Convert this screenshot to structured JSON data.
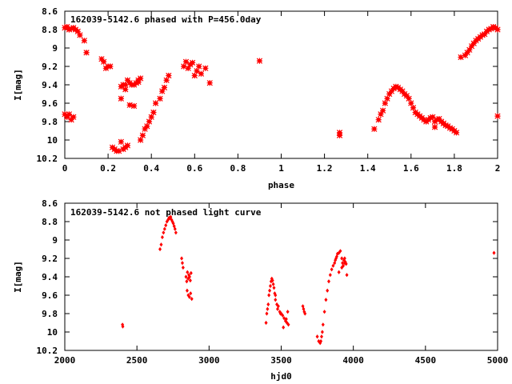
{
  "chart_data": [
    {
      "type": "scatter",
      "title": "162039-5142.6 phased with P=456.0day",
      "xlabel": "phase",
      "ylabel": "I[mag]",
      "xlim": [
        0,
        2
      ],
      "ylim": [
        10.2,
        8.6
      ],
      "y_inverted": true,
      "grid": false,
      "marker_color": "#ff0000",
      "marker": "filled-circle-cross",
      "xticks": [
        "0",
        "0.2",
        "0.4",
        "0.6",
        "0.8",
        "1",
        "1.2",
        "1.4",
        "1.6",
        "1.8",
        "2"
      ],
      "yticks": [
        "8.6",
        "8.8",
        "9",
        "9.2",
        "9.4",
        "9.6",
        "9.8",
        "10",
        "10.2"
      ],
      "series": [
        {
          "x": [
            0.0,
            0.01,
            0.02,
            0.03,
            0.04,
            0.05,
            0.06,
            0.07,
            0.09,
            0.1,
            0.0,
            0.01,
            0.02,
            0.03,
            0.04,
            0.17,
            0.18,
            0.19,
            0.2,
            0.21,
            0.22,
            0.23,
            0.24,
            0.25,
            0.26,
            0.27,
            0.28,
            0.29,
            0.26,
            0.27,
            0.28,
            0.29,
            0.3,
            0.31,
            0.32,
            0.33,
            0.34,
            0.35,
            0.26,
            0.28,
            0.3,
            0.32,
            0.34,
            0.35,
            0.36,
            0.37,
            0.38,
            0.39,
            0.4,
            0.41,
            0.42,
            0.44,
            0.45,
            0.46,
            0.47,
            0.48,
            0.55,
            0.56,
            0.57,
            0.58,
            0.59,
            0.6,
            0.61,
            0.62,
            0.63,
            0.65,
            0.67,
            0.9,
            1.27,
            1.27,
            1.43,
            1.45,
            1.46,
            1.47,
            1.48,
            1.49,
            1.5,
            1.51,
            1.52,
            1.53,
            1.54,
            1.55,
            1.56,
            1.57,
            1.58,
            1.59,
            1.6,
            1.61,
            1.62,
            1.63,
            1.64,
            1.65,
            1.66,
            1.67,
            1.68,
            1.69,
            1.7,
            1.71,
            1.72,
            1.73,
            1.74,
            1.75,
            1.76,
            1.77,
            1.78,
            1.79,
            1.8,
            1.81,
            1.71,
            1.75,
            1.83,
            1.85,
            1.86,
            1.87,
            1.88,
            1.89,
            1.9,
            1.91,
            1.92,
            1.93,
            1.94,
            1.95,
            1.96,
            1.97,
            1.98,
            1.99,
            2.0,
            2.0
          ],
          "y": [
            8.78,
            8.77,
            8.8,
            8.79,
            8.78,
            8.8,
            8.82,
            8.86,
            8.92,
            9.05,
            9.72,
            9.75,
            9.72,
            9.78,
            9.75,
            9.12,
            9.15,
            9.22,
            9.2,
            9.2,
            10.08,
            10.1,
            10.12,
            10.12,
            10.02,
            10.1,
            10.08,
            10.06,
            9.55,
            9.4,
            9.45,
            9.35,
            9.62,
            9.4,
            9.63,
            9.38,
            9.35,
            9.33,
            9.42,
            9.4,
            9.38,
            9.4,
            9.37,
            10.0,
            9.95,
            9.88,
            9.85,
            9.8,
            9.75,
            9.7,
            9.6,
            9.55,
            9.47,
            9.43,
            9.35,
            9.3,
            9.2,
            9.15,
            9.22,
            9.18,
            9.16,
            9.3,
            9.25,
            9.2,
            9.28,
            9.22,
            9.38,
            9.14,
            9.92,
            9.95,
            9.88,
            9.78,
            9.72,
            9.68,
            9.6,
            9.55,
            9.5,
            9.47,
            9.44,
            9.42,
            9.43,
            9.45,
            9.47,
            9.5,
            9.52,
            9.55,
            9.6,
            9.65,
            9.7,
            9.72,
            9.74,
            9.76,
            9.78,
            9.8,
            9.78,
            9.76,
            9.75,
            9.8,
            9.78,
            9.77,
            9.8,
            9.82,
            9.84,
            9.85,
            9.87,
            9.88,
            9.9,
            9.92,
            9.86,
            9.82,
            9.1,
            9.08,
            9.05,
            9.02,
            8.98,
            8.95,
            8.92,
            8.9,
            8.88,
            8.86,
            8.85,
            8.82,
            8.8,
            8.79,
            8.77,
            8.78,
            8.8,
            9.74
          ]
        }
      ]
    },
    {
      "type": "scatter",
      "title": "162039-5142.6 not phased light curve",
      "xlabel": "hjd0",
      "ylabel": "I[mag]",
      "xlim": [
        2000,
        5000
      ],
      "ylim": [
        10.2,
        8.6
      ],
      "y_inverted": true,
      "grid": false,
      "marker_color": "#ff0000",
      "marker": "small-diamond",
      "xticks": [
        "2000",
        "2500",
        "3000",
        "3500",
        "4000",
        "4500",
        "5000"
      ],
      "yticks": [
        "8.6",
        "8.8",
        "9",
        "9.2",
        "9.4",
        "9.6",
        "9.8",
        "10",
        "10.2"
      ],
      "series": [
        {
          "x": [
            2400,
            2402,
            2660,
            2668,
            2676,
            2684,
            2692,
            2700,
            2708,
            2716,
            2722,
            2728,
            2734,
            2740,
            2746,
            2752,
            2758,
            2764,
            2770,
            2810,
            2815,
            2820,
            2840,
            2845,
            2850,
            2855,
            2860,
            2865,
            2870,
            2875,
            2848,
            2856,
            2864,
            2872,
            2880,
            3395,
            3400,
            3405,
            3410,
            3415,
            3420,
            3425,
            3430,
            3435,
            3440,
            3445,
            3450,
            3455,
            3460,
            3470,
            3480,
            3490,
            3500,
            3510,
            3520,
            3530,
            3540,
            3550,
            3460,
            3475,
            3495,
            3515,
            3535,
            3545,
            3650,
            3655,
            3660,
            3665,
            3750,
            3760,
            3770,
            3775,
            3780,
            3785,
            3790,
            3800,
            3810,
            3820,
            3830,
            3840,
            3850,
            3860,
            3870,
            3875,
            3880,
            3885,
            3890,
            3900,
            3910,
            3920,
            3925,
            3930,
            3935,
            3940,
            3945,
            3950,
            3955,
            3900,
            3920,
            3940,
            4975
          ],
          "y": [
            9.92,
            9.94,
            9.1,
            9.05,
            8.97,
            8.92,
            8.88,
            8.84,
            8.8,
            8.78,
            8.76,
            8.76,
            8.75,
            8.78,
            8.8,
            8.82,
            8.85,
            8.88,
            8.92,
            9.2,
            9.25,
            9.3,
            9.4,
            9.45,
            9.35,
            9.42,
            9.38,
            9.4,
            9.44,
            9.36,
            9.55,
            9.6,
            9.62,
            9.58,
            9.64,
            9.9,
            9.8,
            9.75,
            9.7,
            9.6,
            9.55,
            9.5,
            9.45,
            9.42,
            9.44,
            9.48,
            9.52,
            9.58,
            9.6,
            9.7,
            9.72,
            9.78,
            9.8,
            9.82,
            9.85,
            9.88,
            9.9,
            9.92,
            9.65,
            9.75,
            9.8,
            9.95,
            9.86,
            9.78,
            9.72,
            9.75,
            9.78,
            9.8,
            10.05,
            10.1,
            10.12,
            10.1,
            10.05,
            10.0,
            9.92,
            9.78,
            9.65,
            9.55,
            9.45,
            9.38,
            9.32,
            9.28,
            9.25,
            9.22,
            9.2,
            9.18,
            9.15,
            9.14,
            9.12,
            9.2,
            9.25,
            9.28,
            9.22,
            9.2,
            9.24,
            9.26,
            9.38,
            9.35,
            9.3,
            9.25,
            9.14
          ]
        }
      ]
    }
  ]
}
